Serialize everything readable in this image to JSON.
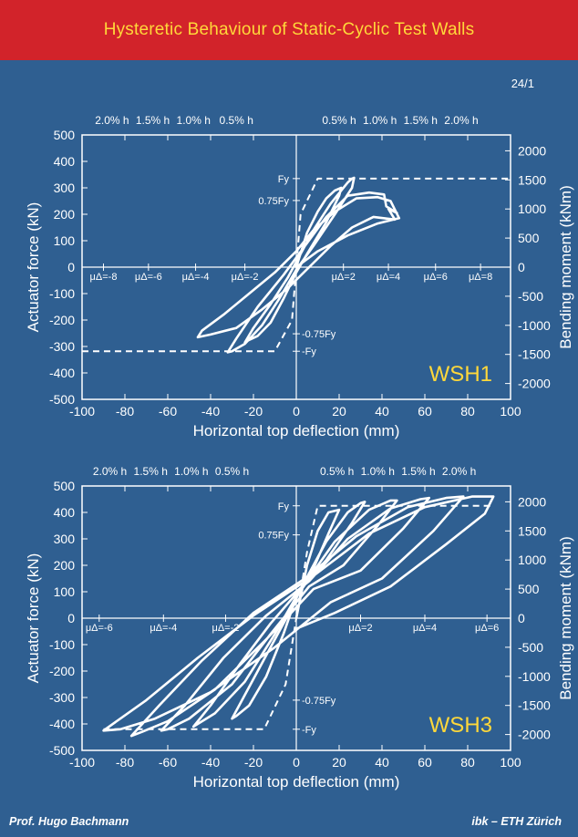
{
  "header": {
    "title": "Hysteretic Behaviour of Static-Cyclic Test Walls",
    "bg": "#d2232a",
    "title_color": "#ffd83a"
  },
  "slide_number": "24/1",
  "footer": {
    "left": "Prof. Hugo Bachmann",
    "right": "ibk – ETH Zürich"
  },
  "colors": {
    "background": "#2f5f91",
    "plot": "#ffffff",
    "wall_label": "#ffd83a"
  },
  "chart_data": [
    {
      "type": "line",
      "wall_label": "WSH1",
      "xlabel": "Horizontal top deflection (mm)",
      "ylabel": "Actuator force (kN)",
      "y2label": "Bending moment (kNm)",
      "xlim": [
        -100,
        100
      ],
      "ylim": [
        -500,
        500
      ],
      "xticks": [
        "-100",
        "-80",
        "-60",
        "-40",
        "-20",
        "0",
        "20",
        "40",
        "60",
        "80",
        "100"
      ],
      "yticks": [
        "500",
        "400",
        "300",
        "200",
        "100",
        "0",
        "-100",
        "-200",
        "-300",
        "-400",
        "-500"
      ],
      "y2ticks": [
        {
          "label": "2000",
          "force": 440
        },
        {
          "label": "1500",
          "force": 330
        },
        {
          "label": "1000",
          "force": 220
        },
        {
          "label": "500",
          "force": 110
        },
        {
          "label": "0",
          "force": 0
        },
        {
          "label": "-500",
          "force": -110
        },
        {
          "label": "-1000",
          "force": -220
        },
        {
          "label": "-1500",
          "force": -330
        },
        {
          "label": "-2000",
          "force": -440
        }
      ],
      "drift_labels": [
        {
          "label": "2.0% h",
          "x": -86
        },
        {
          "label": "1.5% h",
          "x": -67
        },
        {
          "label": "1.0% h",
          "x": -48
        },
        {
          "label": "0.5% h",
          "x": -28
        },
        {
          "label": "0.5% h",
          "x": 20
        },
        {
          "label": "1.0% h",
          "x": 39
        },
        {
          "label": "1.5% h",
          "x": 58
        },
        {
          "label": "2.0% h",
          "x": 77
        }
      ],
      "ductility_labels": [
        {
          "label": "μΔ=-8",
          "x": -90
        },
        {
          "label": "μΔ=-6",
          "x": -69
        },
        {
          "label": "μΔ=-4",
          "x": -47
        },
        {
          "label": "μΔ=-2",
          "x": -24
        },
        {
          "label": "μΔ=2",
          "x": 22
        },
        {
          "label": "μΔ=4",
          "x": 43
        },
        {
          "label": "μΔ=6",
          "x": 65
        },
        {
          "label": "μΔ=8",
          "x": 86
        }
      ],
      "force_markers": [
        {
          "label": "Fy",
          "y": 335,
          "side": "left"
        },
        {
          "label": "0.75Fy",
          "y": 252,
          "side": "left"
        },
        {
          "label": "-0.75Fy",
          "y": -252,
          "side": "right"
        },
        {
          "label": "-Fy",
          "y": -318,
          "side": "right"
        }
      ],
      "idealized": [
        [
          -100,
          -318
        ],
        [
          -10,
          -318
        ],
        [
          -2,
          -200
        ],
        [
          0,
          0
        ],
        [
          2,
          200
        ],
        [
          10,
          335
        ],
        [
          100,
          335
        ]
      ],
      "series": [
        {
          "values": [
            [
              0,
              0
            ],
            [
              5,
              130
            ],
            [
              10,
              210
            ],
            [
              14,
              260
            ],
            [
              18,
              290
            ],
            [
              21,
              300
            ],
            [
              20,
              270
            ],
            [
              14,
              170
            ],
            [
              5,
              50
            ],
            [
              0,
              -20
            ],
            [
              -6,
              -120
            ],
            [
              -12,
              -210
            ],
            [
              -18,
              -260
            ],
            [
              -22,
              -275
            ],
            [
              -24,
              -285
            ],
            [
              -20,
              -230
            ],
            [
              -12,
              -140
            ],
            [
              -4,
              -40
            ],
            [
              2,
              50
            ],
            [
              8,
              140
            ],
            [
              16,
              240
            ],
            [
              24,
              320
            ],
            [
              26,
              335
            ],
            [
              27,
              338
            ],
            [
              26,
              300
            ],
            [
              18,
              200
            ],
            [
              8,
              80
            ],
            [
              0,
              -10
            ],
            [
              -8,
              -120
            ],
            [
              -16,
              -220
            ],
            [
              -24,
              -290
            ],
            [
              -30,
              -318
            ],
            [
              -32,
              -322
            ],
            [
              -28,
              -270
            ],
            [
              -18,
              -150
            ],
            [
              -6,
              -30
            ],
            [
              4,
              80
            ],
            [
              14,
              190
            ],
            [
              24,
              270
            ],
            [
              34,
              282
            ],
            [
              41,
              275
            ],
            [
              42,
              230
            ],
            [
              47,
              205
            ],
            [
              43,
              220
            ],
            [
              46,
              180
            ],
            [
              36,
              190
            ],
            [
              26,
              150
            ],
            [
              16,
              80
            ],
            [
              6,
              0
            ],
            [
              -4,
              -80
            ],
            [
              -16,
              -160
            ],
            [
              -28,
              -230
            ],
            [
              -40,
              -255
            ],
            [
              -46,
              -265
            ],
            [
              -44,
              -240
            ],
            [
              -34,
              -180
            ],
            [
              -22,
              -100
            ],
            [
              -10,
              -20
            ],
            [
              0,
              60
            ],
            [
              8,
              140
            ],
            [
              18,
              210
            ],
            [
              28,
              260
            ],
            [
              38,
              265
            ],
            [
              44,
              250
            ],
            [
              48,
              185
            ],
            [
              38,
              165
            ],
            [
              24,
              120
            ],
            [
              10,
              60
            ],
            [
              0,
              0
            ]
          ]
        }
      ]
    },
    {
      "type": "line",
      "wall_label": "WSH3",
      "xlabel": "Horizontal top deflection (mm)",
      "ylabel": "Actuator force (kN)",
      "y2label": "Bending moment (kNm)",
      "xlim": [
        -100,
        100
      ],
      "ylim": [
        -500,
        500
      ],
      "xticks": [
        "-100",
        "-80",
        "-60",
        "-40",
        "-20",
        "0",
        "20",
        "40",
        "60",
        "80",
        "100"
      ],
      "yticks": [
        "500",
        "400",
        "300",
        "200",
        "100",
        "0",
        "-100",
        "-200",
        "-300",
        "-400",
        "-500"
      ],
      "y2ticks": [
        {
          "label": "2000",
          "force": 440
        },
        {
          "label": "1500",
          "force": 330
        },
        {
          "label": "1000",
          "force": 220
        },
        {
          "label": "500",
          "force": 110
        },
        {
          "label": "0",
          "force": 0
        },
        {
          "label": "-500",
          "force": -110
        },
        {
          "label": "-1000",
          "force": -220
        },
        {
          "label": "-1500",
          "force": -330
        },
        {
          "label": "-2000",
          "force": -440
        }
      ],
      "drift_labels": [
        {
          "label": "2.0% h",
          "x": -87
        },
        {
          "label": "1.5% h",
          "x": -68
        },
        {
          "label": "1.0% h",
          "x": -49
        },
        {
          "label": "0.5% h",
          "x": -30
        },
        {
          "label": "0.5% h",
          "x": 19
        },
        {
          "label": "1.0% h",
          "x": 38
        },
        {
          "label": "1.5% h",
          "x": 57
        },
        {
          "label": "2.0% h",
          "x": 76
        }
      ],
      "ductility_labels": [
        {
          "label": "μΔ=-6",
          "x": -92
        },
        {
          "label": "μΔ=-4",
          "x": -62
        },
        {
          "label": "μΔ=-2",
          "x": -33
        },
        {
          "label": "μΔ=2",
          "x": 30
        },
        {
          "label": "μΔ=4",
          "x": 60
        },
        {
          "label": "μΔ=6",
          "x": 89
        }
      ],
      "force_markers": [
        {
          "label": "Fy",
          "y": 425,
          "side": "left"
        },
        {
          "label": "0.75Fy",
          "y": 315,
          "side": "left"
        },
        {
          "label": "-0.75Fy",
          "y": -310,
          "side": "right"
        },
        {
          "label": "-Fy",
          "y": -420,
          "side": "right"
        }
      ],
      "idealized": [
        [
          -90,
          -420
        ],
        [
          -15,
          -420
        ],
        [
          -5,
          -250
        ],
        [
          0,
          0
        ],
        [
          5,
          250
        ],
        [
          10,
          425
        ],
        [
          92,
          425
        ]
      ],
      "series": [
        {
          "values": [
            [
              0,
              0
            ],
            [
              5,
              200
            ],
            [
              10,
              330
            ],
            [
              15,
              400
            ],
            [
              20,
              410
            ],
            [
              15,
              320
            ],
            [
              6,
              150
            ],
            [
              0,
              80
            ],
            [
              -6,
              -60
            ],
            [
              -14,
              -220
            ],
            [
              -22,
              -330
            ],
            [
              -28,
              -370
            ],
            [
              -30,
              -380
            ],
            [
              -24,
              -290
            ],
            [
              -14,
              -140
            ],
            [
              -4,
              10
            ],
            [
              4,
              140
            ],
            [
              14,
              290
            ],
            [
              24,
              400
            ],
            [
              30,
              435
            ],
            [
              32,
              440
            ],
            [
              26,
              360
            ],
            [
              14,
              220
            ],
            [
              2,
              110
            ],
            [
              -10,
              -60
            ],
            [
              -24,
              -240
            ],
            [
              -38,
              -360
            ],
            [
              -46,
              -400
            ],
            [
              -48,
              -410
            ],
            [
              -40,
              -330
            ],
            [
              -26,
              -170
            ],
            [
              -12,
              -20
            ],
            [
              4,
              130
            ],
            [
              18,
              290
            ],
            [
              34,
              410
            ],
            [
              44,
              445
            ],
            [
              47,
              445
            ],
            [
              38,
              350
            ],
            [
              22,
              200
            ],
            [
              6,
              120
            ],
            [
              -12,
              -60
            ],
            [
              -30,
              -250
            ],
            [
              -50,
              -380
            ],
            [
              -60,
              -420
            ],
            [
              -63,
              -425
            ],
            [
              -52,
              -330
            ],
            [
              -34,
              -150
            ],
            [
              -14,
              10
            ],
            [
              6,
              140
            ],
            [
              24,
              300
            ],
            [
              44,
              415
            ],
            [
              58,
              450
            ],
            [
              62,
              455
            ],
            [
              50,
              340
            ],
            [
              30,
              180
            ],
            [
              8,
              110
            ],
            [
              -14,
              -80
            ],
            [
              -38,
              -270
            ],
            [
              -60,
              -390
            ],
            [
              -72,
              -430
            ],
            [
              -77,
              -445
            ],
            [
              -64,
              -330
            ],
            [
              -44,
              -160
            ],
            [
              -20,
              20
            ],
            [
              4,
              150
            ],
            [
              28,
              310
            ],
            [
              52,
              420
            ],
            [
              70,
              455
            ],
            [
              78,
              460
            ],
            [
              64,
              330
            ],
            [
              40,
              150
            ],
            [
              16,
              60
            ],
            [
              -10,
              -110
            ],
            [
              -40,
              -280
            ],
            [
              -66,
              -380
            ],
            [
              -82,
              -420
            ],
            [
              -90,
              -425
            ],
            [
              -70,
              -310
            ],
            [
              -46,
              -150
            ],
            [
              -20,
              10
            ],
            [
              8,
              160
            ],
            [
              34,
              320
            ],
            [
              60,
              420
            ],
            [
              82,
              460
            ],
            [
              92,
              460
            ],
            [
              88,
              395
            ],
            [
              70,
              280
            ],
            [
              44,
              120
            ],
            [
              18,
              20
            ],
            [
              0,
              -40
            ]
          ]
        }
      ]
    }
  ]
}
